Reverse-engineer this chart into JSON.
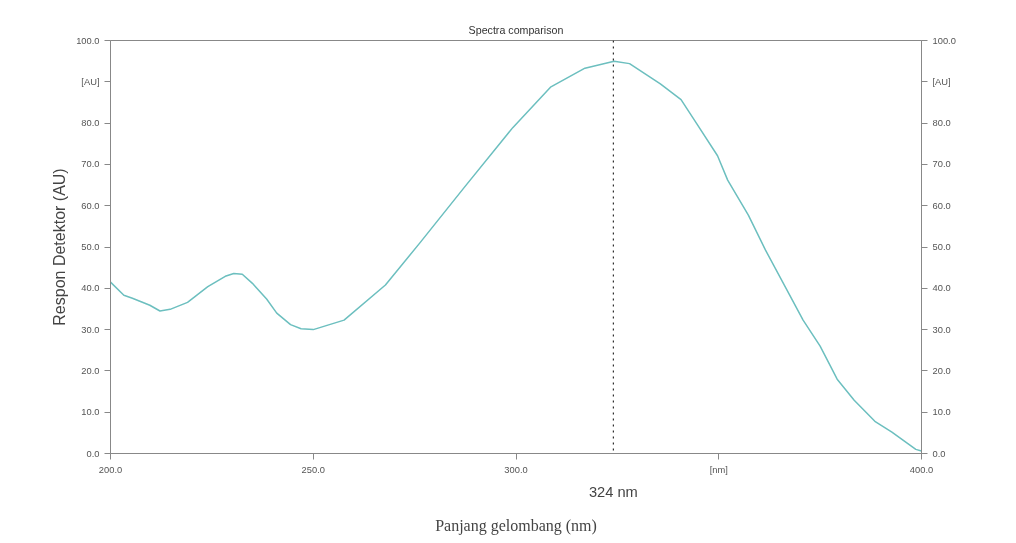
{
  "chart_data": {
    "type": "line",
    "title": "Spectra comparison",
    "xlabel": "Panjang gelombang (nm)",
    "ylabel": "Respon Detektor (AU)",
    "x": [
      200,
      203.3,
      205.4,
      209.7,
      212.2,
      214.7,
      219,
      224,
      228.3,
      230.4,
      232.5,
      235,
      238.5,
      241,
      244.4,
      247,
      250,
      257.6,
      267.8,
      276.3,
      287.3,
      299.2,
      308.5,
      317,
      324.2,
      328,
      335.6,
      340.7,
      344.6,
      349.7,
      352.2,
      357.3,
      361.5,
      366.6,
      370.8,
      375,
      379.2,
      383.4,
      388.5,
      392.7,
      398.6,
      400
    ],
    "series": [
      {
        "color": "#6cbfbf",
        "values": [
          41.5,
          38.3,
          37.6,
          35.9,
          34.5,
          34.9,
          36.6,
          40.4,
          42.9,
          43.6,
          43.4,
          41.2,
          37.4,
          34,
          31.2,
          30.2,
          30,
          32.3,
          40.8,
          51,
          64.5,
          78.9,
          88.7,
          93.3,
          95,
          94.4,
          89.5,
          85.7,
          79.8,
          72.1,
          66.2,
          57.7,
          49.3,
          40,
          32.3,
          26,
          18,
          12.9,
          7.8,
          5.2,
          1,
          0.6
        ]
      }
    ],
    "xlim": [
      200,
      400
    ],
    "xticks": [
      {
        "value": 200,
        "label": "200.0"
      },
      {
        "value": 250,
        "label": "250.0"
      },
      {
        "value": 300,
        "label": "300.0"
      },
      {
        "value": 350,
        "label": "[nm]"
      },
      {
        "value": 400,
        "label": "400.0"
      }
    ],
    "ylim": [
      0,
      100
    ],
    "yticks": [
      {
        "value": 0,
        "label": "0.0"
      },
      {
        "value": 10,
        "label": "10.0"
      },
      {
        "value": 20,
        "label": "20.0"
      },
      {
        "value": 30,
        "label": "30.0"
      },
      {
        "value": 40,
        "label": "40.0"
      },
      {
        "value": 50,
        "label": "50.0"
      },
      {
        "value": 60,
        "label": "60.0"
      },
      {
        "value": 70,
        "label": "70.0"
      },
      {
        "value": 80,
        "label": "80.0"
      },
      {
        "value": 90,
        "label": "[AU]"
      },
      {
        "value": 100,
        "label": "100.0"
      }
    ],
    "y2lim": [
      0,
      100
    ],
    "y2ticks": [
      {
        "value": 0,
        "label": "0.0"
      },
      {
        "value": 10,
        "label": "10.0"
      },
      {
        "value": 20,
        "label": "20.0"
      },
      {
        "value": 30,
        "label": "30.0"
      },
      {
        "value": 40,
        "label": "40.0"
      },
      {
        "value": 50,
        "label": "50.0"
      },
      {
        "value": 60,
        "label": "60.0"
      },
      {
        "value": 70,
        "label": "70.0"
      },
      {
        "value": 80,
        "label": "80.0"
      },
      {
        "value": 90,
        "label": "[AU]"
      },
      {
        "value": 100,
        "label": "100.0"
      }
    ],
    "ref_lines": [
      {
        "axis": "x",
        "value": 324,
        "label": "324 nm",
        "color": "#000000",
        "line_style": "dotted"
      }
    ],
    "grid": false,
    "marker": "none",
    "line_style": "solid"
  }
}
